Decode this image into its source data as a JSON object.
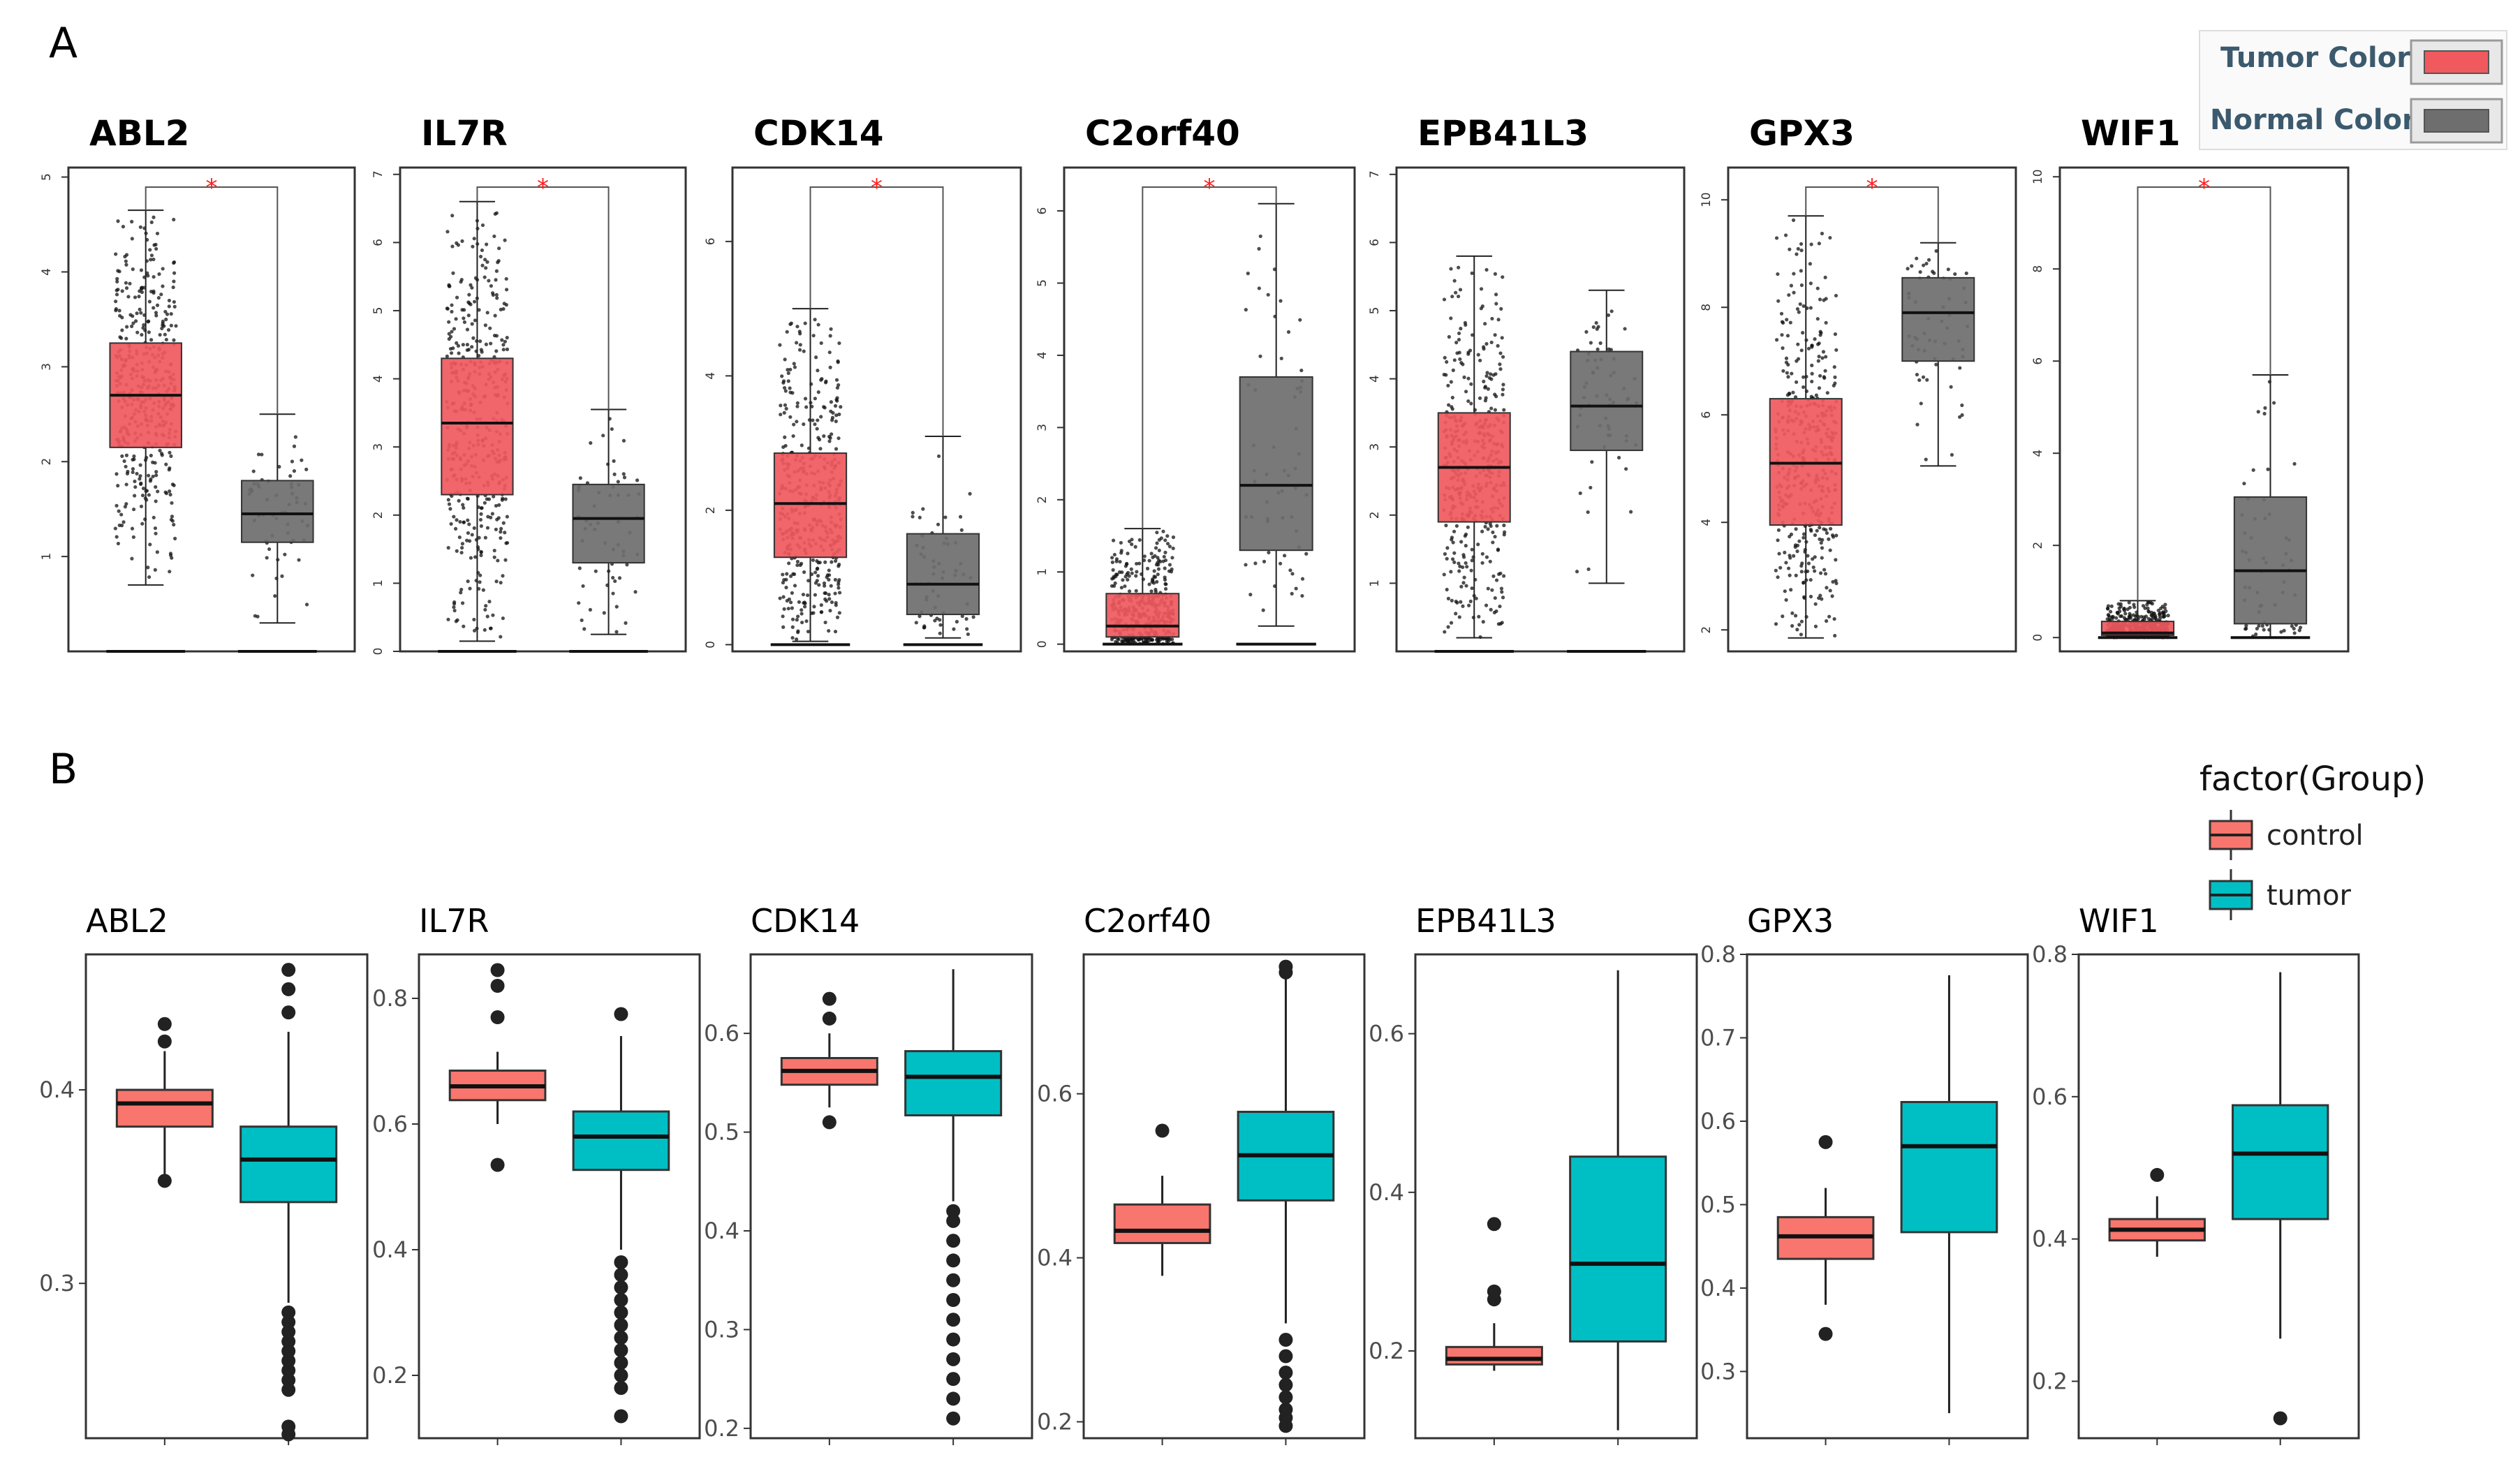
{
  "panel_labels": {
    "a": "A",
    "b": "B"
  },
  "legend_a": {
    "items": [
      {
        "label": "Tumor Color",
        "color": "#f0595e"
      },
      {
        "label": "Normal Color",
        "color": "#6e6e6e"
      }
    ]
  },
  "legend_b": {
    "title": "factor(Group)",
    "items": [
      {
        "label": "control",
        "color": "#f8766d"
      },
      {
        "label": "tumor",
        "color": "#00bfc4"
      }
    ]
  },
  "chart_data": [
    {
      "panel": "A",
      "type": "boxplot",
      "series_colors": {
        "tumor": "#f0595e",
        "normal": "#6e6e6e"
      },
      "significance_marker": "*",
      "plots": [
        {
          "title": "ABL2",
          "ylim": [
            0,
            5.1
          ],
          "ticks": [
            1,
            2,
            3,
            4,
            5
          ],
          "significant": true,
          "tumor": {
            "min": 0.7,
            "q1": 2.15,
            "median": 2.7,
            "q3": 3.25,
            "max": 4.65
          },
          "normal": {
            "min": 0.3,
            "q1": 1.15,
            "median": 1.45,
            "q3": 1.8,
            "max": 2.5
          }
        },
        {
          "title": "IL7R",
          "ylim": [
            0,
            7.1
          ],
          "ticks": [
            0,
            1,
            2,
            3,
            4,
            5,
            6,
            7
          ],
          "significant": true,
          "tumor": {
            "min": 0.15,
            "q1": 2.3,
            "median": 3.35,
            "q3": 4.3,
            "max": 6.6
          },
          "normal": {
            "min": 0.25,
            "q1": 1.3,
            "median": 1.95,
            "q3": 2.45,
            "max": 3.55
          }
        },
        {
          "title": "CDK14",
          "ylim": [
            -0.1,
            7.1
          ],
          "ticks": [
            0,
            2,
            4,
            6
          ],
          "significant": true,
          "tumor": {
            "min": 0.05,
            "q1": 1.3,
            "median": 2.1,
            "q3": 2.85,
            "max": 5.0
          },
          "normal": {
            "min": 0.1,
            "q1": 0.45,
            "median": 0.9,
            "q3": 1.65,
            "max": 3.1
          }
        },
        {
          "title": "C2orf40",
          "ylim": [
            -0.1,
            6.6
          ],
          "ticks": [
            0,
            1,
            2,
            3,
            4,
            5,
            6
          ],
          "significant": true,
          "tumor": {
            "min": 0.0,
            "q1": 0.1,
            "median": 0.25,
            "q3": 0.7,
            "max": 1.6
          },
          "normal": {
            "min": 0.25,
            "q1": 1.3,
            "median": 2.2,
            "q3": 3.7,
            "max": 6.1
          }
        },
        {
          "title": "EPB41L3",
          "ylim": [
            0,
            7.1
          ],
          "ticks": [
            1,
            2,
            3,
            4,
            5,
            6,
            7
          ],
          "significant": false,
          "tumor": {
            "min": 0.2,
            "q1": 1.9,
            "median": 2.7,
            "q3": 3.5,
            "max": 5.8
          },
          "normal": {
            "min": 1.0,
            "q1": 2.95,
            "median": 3.6,
            "q3": 4.4,
            "max": 5.3
          }
        },
        {
          "title": "GPX3",
          "ylim": [
            1.6,
            10.6
          ],
          "ticks": [
            2,
            4,
            6,
            8,
            10
          ],
          "significant": true,
          "tumor": {
            "min": 1.85,
            "q1": 3.95,
            "median": 5.1,
            "q3": 6.3,
            "max": 9.7
          },
          "normal": {
            "min": 5.05,
            "q1": 7.0,
            "median": 7.9,
            "q3": 8.55,
            "max": 9.2
          }
        },
        {
          "title": "WIF1",
          "ylim": [
            -0.3,
            10.2
          ],
          "ticks": [
            0,
            2,
            4,
            6,
            8,
            10
          ],
          "significant": true,
          "tumor": {
            "min": 0.0,
            "q1": 0.05,
            "median": 0.1,
            "q3": 0.35,
            "max": 0.8
          },
          "normal": {
            "min": 0.0,
            "q1": 0.3,
            "median": 1.45,
            "q3": 3.05,
            "max": 5.7
          }
        }
      ]
    },
    {
      "panel": "B",
      "type": "boxplot",
      "series": [
        "control",
        "tumor"
      ],
      "plots": [
        {
          "title": "ABL2",
          "ylim": [
            0.22,
            0.47
          ],
          "ticks": [
            0.3,
            0.4
          ],
          "control": {
            "min": 0.355,
            "q1": 0.381,
            "median": 0.393,
            "q3": 0.4,
            "max": 0.42,
            "outliers": [
              0.353,
              0.425,
              0.434
            ]
          },
          "tumor": {
            "min": 0.29,
            "q1": 0.342,
            "median": 0.364,
            "q3": 0.381,
            "max": 0.43,
            "outliers": [
              0.222,
              0.226,
              0.245,
              0.25,
              0.255,
              0.26,
              0.265,
              0.27,
              0.275,
              0.28,
              0.285,
              0.44,
              0.452,
              0.462
            ]
          }
        },
        {
          "title": "IL7R",
          "ylim": [
            0.1,
            0.87
          ],
          "ticks": [
            0.2,
            0.4,
            0.6,
            0.8
          ],
          "ticklabels": [
            "0.2",
            "0.4",
            "0.6",
            "0.8"
          ],
          "control": {
            "min": 0.6,
            "q1": 0.638,
            "median": 0.66,
            "q3": 0.685,
            "max": 0.715,
            "outliers": [
              0.535,
              0.77,
              0.82,
              0.845
            ]
          },
          "tumor": {
            "min": 0.4,
            "q1": 0.527,
            "median": 0.58,
            "q3": 0.62,
            "max": 0.74,
            "outliers": [
              0.135,
              0.18,
              0.2,
              0.22,
              0.24,
              0.26,
              0.28,
              0.3,
              0.32,
              0.34,
              0.36,
              0.38,
              0.775
            ]
          }
        },
        {
          "title": "CDK14",
          "ylim": [
            0.19,
            0.68
          ],
          "ticks": [
            0.2,
            0.3,
            0.4,
            0.5,
            0.6
          ],
          "control": {
            "min": 0.525,
            "q1": 0.548,
            "median": 0.562,
            "q3": 0.575,
            "max": 0.6,
            "outliers": [
              0.51,
              0.615,
              0.635
            ]
          },
          "tumor": {
            "min": 0.43,
            "q1": 0.517,
            "median": 0.556,
            "q3": 0.582,
            "max": 0.665,
            "outliers": [
              0.21,
              0.23,
              0.25,
              0.27,
              0.29,
              0.31,
              0.33,
              0.35,
              0.37,
              0.39,
              0.41,
              0.42
            ]
          }
        },
        {
          "title": "C2orf40",
          "ylim": [
            0.18,
            0.77
          ],
          "ticks": [
            0.2,
            0.4,
            0.6
          ],
          "control": {
            "min": 0.378,
            "q1": 0.418,
            "median": 0.433,
            "q3": 0.465,
            "max": 0.5,
            "outliers": [
              0.555
            ]
          },
          "tumor": {
            "min": 0.32,
            "q1": 0.47,
            "median": 0.525,
            "q3": 0.578,
            "max": 0.74,
            "outliers": [
              0.195,
              0.205,
              0.215,
              0.23,
              0.245,
              0.26,
              0.28,
              0.3,
              0.748,
              0.755
            ]
          }
        },
        {
          "title": "EPB41L3",
          "ylim": [
            0.09,
            0.7
          ],
          "ticks": [
            0.2,
            0.4,
            0.6
          ],
          "control": {
            "min": 0.175,
            "q1": 0.183,
            "median": 0.19,
            "q3": 0.205,
            "max": 0.235,
            "outliers": [
              0.265,
              0.275,
              0.36
            ]
          },
          "tumor": {
            "min": 0.1,
            "q1": 0.212,
            "median": 0.31,
            "q3": 0.445,
            "max": 0.68,
            "outliers": []
          }
        },
        {
          "title": "GPX3",
          "ylim": [
            0.22,
            0.8
          ],
          "ticks": [
            0.3,
            0.4,
            0.5,
            0.6,
            0.7,
            0.8
          ],
          "control": {
            "min": 0.38,
            "q1": 0.435,
            "median": 0.462,
            "q3": 0.485,
            "max": 0.52,
            "outliers": [
              0.345,
              0.575
            ]
          },
          "tumor": {
            "min": 0.25,
            "q1": 0.467,
            "median": 0.57,
            "q3": 0.623,
            "max": 0.775,
            "outliers": []
          }
        },
        {
          "title": "WIF1",
          "ylim": [
            0.12,
            0.8
          ],
          "ticks": [
            0.2,
            0.4,
            0.6,
            0.8
          ],
          "control": {
            "min": 0.375,
            "q1": 0.398,
            "median": 0.413,
            "q3": 0.428,
            "max": 0.46,
            "outliers": [
              0.49
            ]
          },
          "tumor": {
            "min": 0.26,
            "q1": 0.428,
            "median": 0.52,
            "q3": 0.588,
            "max": 0.775,
            "outliers": [
              0.148
            ]
          }
        }
      ]
    }
  ]
}
